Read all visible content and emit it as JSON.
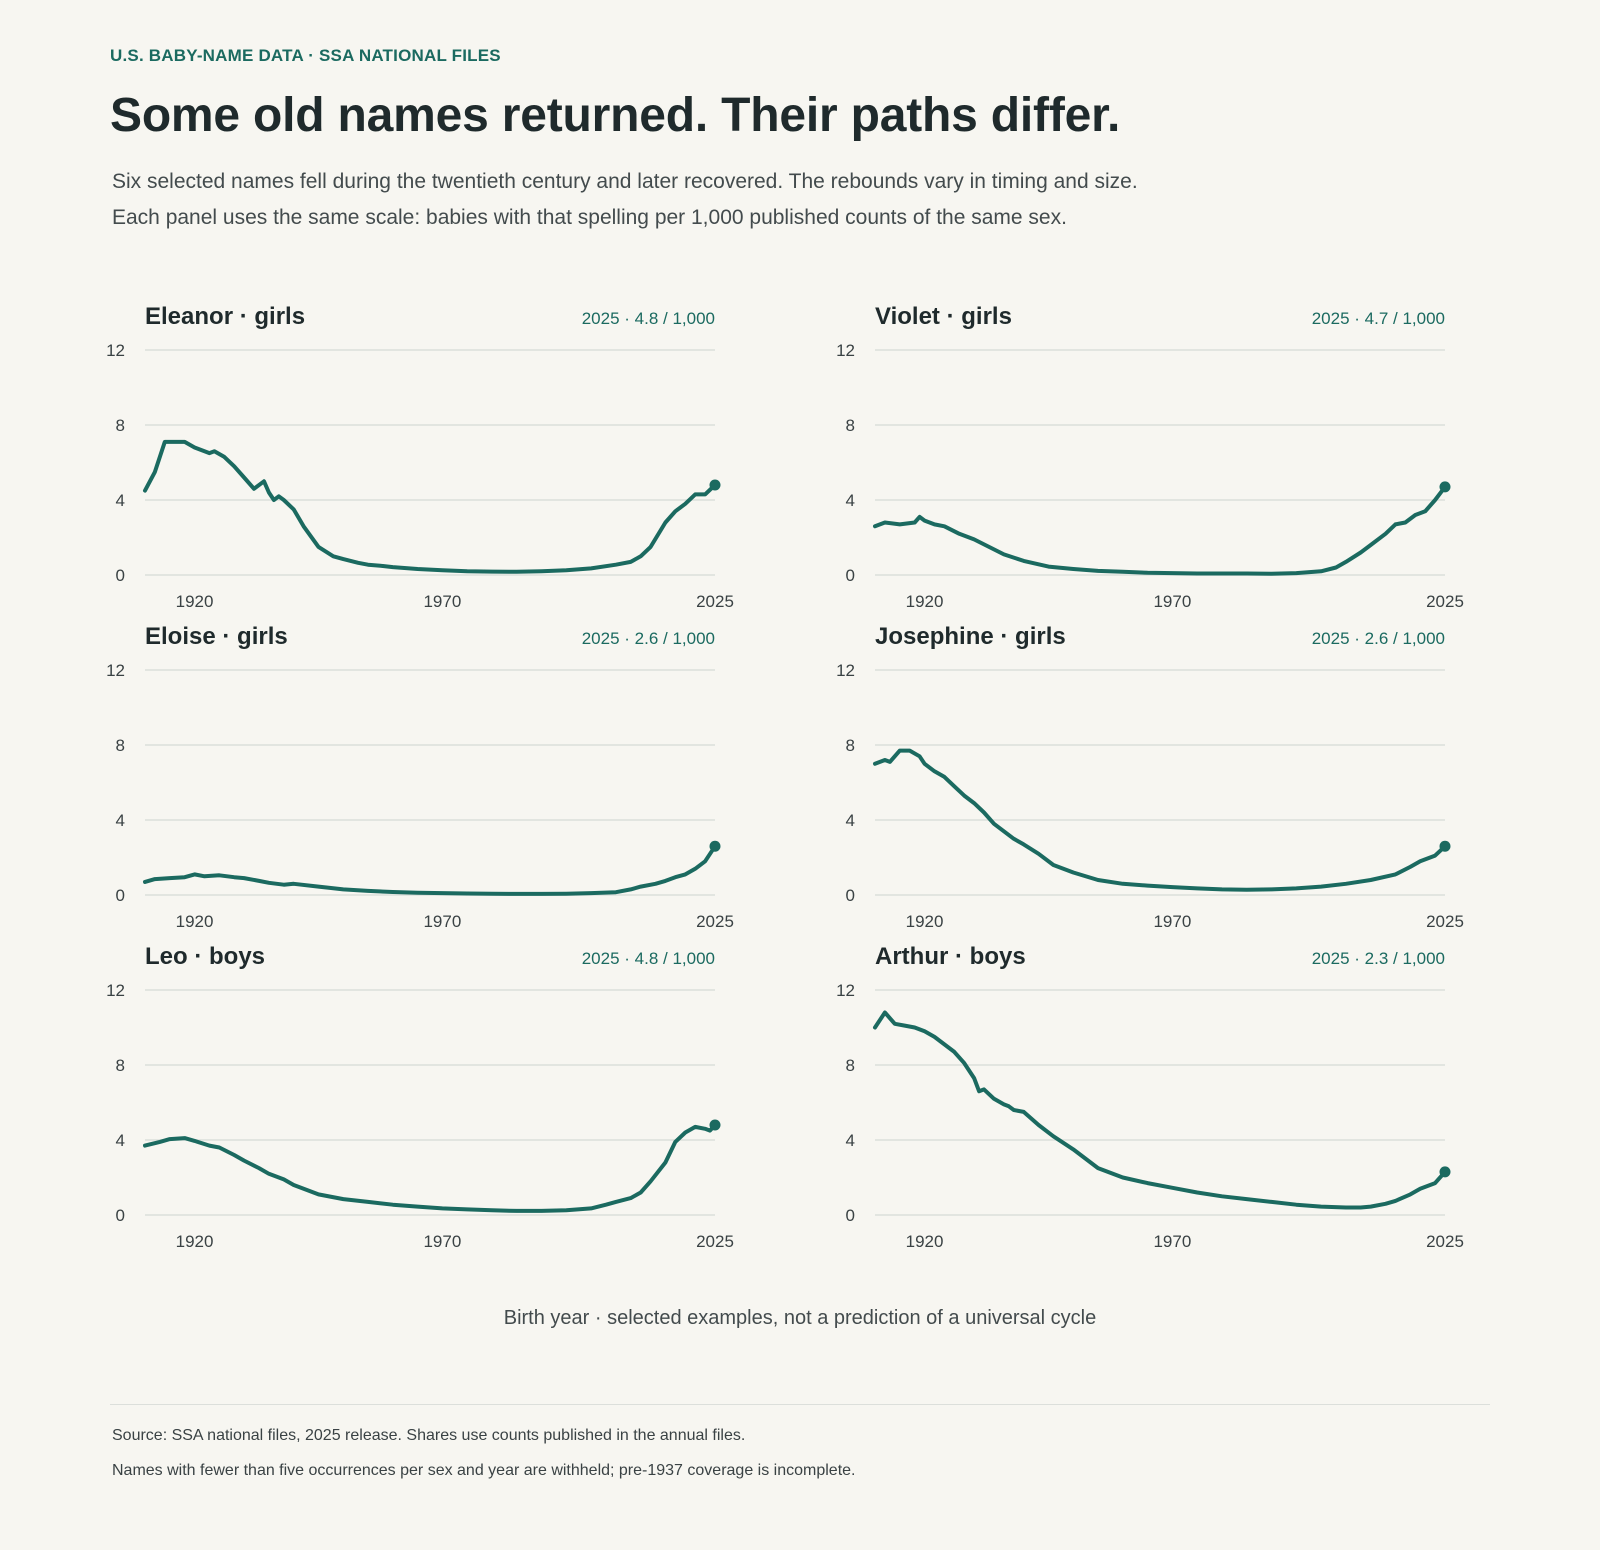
{
  "header": {
    "kicker": "U.S. BABY-NAME DATA · SSA NATIONAL FILES",
    "title": "Some old names returned. Their paths differ.",
    "subtitle_line1": "Six selected names fell during the twentieth century and later recovered. The rebounds vary in timing and size.",
    "subtitle_line2": "Each panel uses the same scale: babies with that spelling per 1,000 published counts of the same sex."
  },
  "x_axis_note": "Birth year · selected examples, not a prediction of a universal cycle",
  "footer": {
    "source_line1": "Source: SSA national files, 2025 release. Shares use counts published in the annual files.",
    "source_line2": "Names with fewer than five occurrences per sex and year are withheld; pre-1937 coverage is incomplete."
  },
  "colors": {
    "accent": "#1b6a60",
    "background": "#f7f6f1",
    "text": "#1f2a2c",
    "grid": "#dcdfdb"
  },
  "chart_data": [
    {
      "type": "line",
      "title": "Eleanor · girls",
      "latest_label": "2025 · 4.8 / 1,000",
      "xlim": [
        1910,
        2025
      ],
      "ylim": [
        0,
        12
      ],
      "x_ticks": [
        "1920",
        "1970",
        "2025"
      ],
      "y_ticks": [
        "0",
        "4",
        "8",
        "12"
      ],
      "grid": true,
      "x": [
        1910,
        1912,
        1914,
        1916,
        1918,
        1920,
        1922,
        1923,
        1924,
        1926,
        1928,
        1930,
        1932,
        1934,
        1935,
        1936,
        1937,
        1938,
        1940,
        1942,
        1945,
        1948,
        1950,
        1953,
        1955,
        1958,
        1960,
        1965,
        1970,
        1975,
        1980,
        1985,
        1990,
        1995,
        2000,
        2005,
        2008,
        2010,
        2012,
        2015,
        2017,
        2019,
        2021,
        2023,
        2025
      ],
      "values": [
        4.5,
        5.5,
        7.1,
        7.1,
        7.1,
        6.8,
        6.6,
        6.5,
        6.6,
        6.3,
        5.8,
        5.2,
        4.6,
        5.0,
        4.4,
        4.0,
        4.2,
        4.0,
        3.5,
        2.6,
        1.5,
        1.0,
        0.85,
        0.65,
        0.55,
        0.48,
        0.42,
        0.32,
        0.25,
        0.2,
        0.18,
        0.17,
        0.2,
        0.25,
        0.35,
        0.55,
        0.7,
        1.0,
        1.5,
        2.8,
        3.4,
        3.8,
        4.3,
        4.3,
        4.8
      ]
    },
    {
      "type": "line",
      "title": "Violet · girls",
      "latest_label": "2025 · 4.7 / 1,000",
      "xlim": [
        1910,
        2025
      ],
      "ylim": [
        0,
        12
      ],
      "x_ticks": [
        "1920",
        "1970",
        "2025"
      ],
      "y_ticks": [
        "0",
        "4",
        "8",
        "12"
      ],
      "grid": true,
      "x": [
        1910,
        1912,
        1915,
        1918,
        1919,
        1920,
        1922,
        1924,
        1927,
        1930,
        1933,
        1936,
        1940,
        1945,
        1950,
        1955,
        1960,
        1965,
        1970,
        1975,
        1980,
        1985,
        1990,
        1995,
        2000,
        2003,
        2005,
        2008,
        2010,
        2013,
        2015,
        2017,
        2019,
        2021,
        2023,
        2025
      ],
      "values": [
        2.6,
        2.8,
        2.7,
        2.8,
        3.1,
        2.9,
        2.7,
        2.6,
        2.2,
        1.9,
        1.5,
        1.1,
        0.75,
        0.45,
        0.32,
        0.22,
        0.17,
        0.12,
        0.1,
        0.08,
        0.08,
        0.08,
        0.07,
        0.1,
        0.2,
        0.4,
        0.7,
        1.2,
        1.6,
        2.2,
        2.7,
        2.8,
        3.2,
        3.4,
        4.0,
        4.7
      ]
    },
    {
      "type": "line",
      "title": "Eloise · girls",
      "latest_label": "2025 · 2.6 / 1,000",
      "xlim": [
        1910,
        2025
      ],
      "ylim": [
        0,
        12
      ],
      "x_ticks": [
        "1920",
        "1970",
        "2025"
      ],
      "y_ticks": [
        "0",
        "4",
        "8",
        "12"
      ],
      "grid": true,
      "x": [
        1910,
        1912,
        1915,
        1918,
        1920,
        1922,
        1925,
        1928,
        1930,
        1933,
        1935,
        1938,
        1940,
        1945,
        1950,
        1955,
        1960,
        1965,
        1970,
        1975,
        1980,
        1985,
        1990,
        1995,
        2000,
        2005,
        2008,
        2010,
        2013,
        2015,
        2017,
        2019,
        2021,
        2023,
        2025
      ],
      "values": [
        0.7,
        0.85,
        0.9,
        0.95,
        1.1,
        1.0,
        1.05,
        0.95,
        0.9,
        0.75,
        0.65,
        0.55,
        0.6,
        0.45,
        0.3,
        0.22,
        0.16,
        0.12,
        0.1,
        0.08,
        0.07,
        0.06,
        0.06,
        0.07,
        0.1,
        0.15,
        0.3,
        0.45,
        0.6,
        0.75,
        0.95,
        1.1,
        1.4,
        1.8,
        2.6
      ]
    },
    {
      "type": "line",
      "title": "Josephine · girls",
      "latest_label": "2025 · 2.6 / 1,000",
      "xlim": [
        1910,
        2025
      ],
      "ylim": [
        0,
        12
      ],
      "x_ticks": [
        "1920",
        "1970",
        "2025"
      ],
      "y_ticks": [
        "0",
        "4",
        "8",
        "12"
      ],
      "grid": true,
      "x": [
        1910,
        1912,
        1913,
        1915,
        1917,
        1919,
        1920,
        1922,
        1924,
        1926,
        1928,
        1930,
        1932,
        1934,
        1936,
        1938,
        1940,
        1943,
        1946,
        1950,
        1955,
        1960,
        1965,
        1970,
        1975,
        1980,
        1985,
        1990,
        1995,
        2000,
        2005,
        2010,
        2015,
        2018,
        2020,
        2023,
        2025
      ],
      "values": [
        7.0,
        7.2,
        7.1,
        7.7,
        7.7,
        7.4,
        7.0,
        6.6,
        6.3,
        5.8,
        5.3,
        4.9,
        4.4,
        3.8,
        3.4,
        3.0,
        2.7,
        2.2,
        1.6,
        1.2,
        0.8,
        0.6,
        0.5,
        0.42,
        0.35,
        0.3,
        0.28,
        0.3,
        0.35,
        0.45,
        0.6,
        0.8,
        1.1,
        1.5,
        1.8,
        2.1,
        2.6
      ]
    },
    {
      "type": "line",
      "title": "Leo · boys",
      "latest_label": "2025 · 4.8 / 1,000",
      "xlim": [
        1910,
        2025
      ],
      "ylim": [
        0,
        12
      ],
      "x_ticks": [
        "1920",
        "1970",
        "2025"
      ],
      "y_ticks": [
        "0",
        "4",
        "8",
        "12"
      ],
      "grid": true,
      "x": [
        1910,
        1913,
        1915,
        1918,
        1920,
        1923,
        1925,
        1928,
        1930,
        1933,
        1935,
        1938,
        1940,
        1945,
        1950,
        1955,
        1960,
        1965,
        1970,
        1975,
        1980,
        1985,
        1990,
        1995,
        2000,
        2003,
        2005,
        2008,
        2010,
        2012,
        2015,
        2017,
        2019,
        2021,
        2023,
        2024,
        2025
      ],
      "values": [
        3.7,
        3.9,
        4.05,
        4.1,
        3.95,
        3.7,
        3.6,
        3.2,
        2.9,
        2.5,
        2.2,
        1.9,
        1.6,
        1.1,
        0.85,
        0.7,
        0.55,
        0.45,
        0.35,
        0.3,
        0.25,
        0.22,
        0.22,
        0.25,
        0.35,
        0.55,
        0.7,
        0.9,
        1.2,
        1.8,
        2.8,
        3.9,
        4.4,
        4.7,
        4.6,
        4.5,
        4.8
      ]
    },
    {
      "type": "line",
      "title": "Arthur · boys",
      "latest_label": "2025 · 2.3 / 1,000",
      "xlim": [
        1910,
        2025
      ],
      "ylim": [
        0,
        12
      ],
      "x_ticks": [
        "1920",
        "1970",
        "2025"
      ],
      "y_ticks": [
        "0",
        "4",
        "8",
        "12"
      ],
      "grid": true,
      "x": [
        1910,
        1912,
        1914,
        1916,
        1918,
        1920,
        1922,
        1924,
        1926,
        1928,
        1930,
        1931,
        1932,
        1934,
        1936,
        1937,
        1938,
        1940,
        1943,
        1946,
        1950,
        1955,
        1960,
        1965,
        1970,
        1975,
        1980,
        1985,
        1990,
        1995,
        2000,
        2005,
        2008,
        2010,
        2013,
        2015,
        2018,
        2020,
        2023,
        2025
      ],
      "values": [
        10.0,
        10.8,
        10.2,
        10.1,
        10.0,
        9.8,
        9.5,
        9.1,
        8.7,
        8.1,
        7.3,
        6.6,
        6.7,
        6.2,
        5.9,
        5.8,
        5.6,
        5.5,
        4.8,
        4.2,
        3.5,
        2.5,
        2.0,
        1.7,
        1.45,
        1.2,
        1.0,
        0.85,
        0.7,
        0.55,
        0.45,
        0.4,
        0.4,
        0.45,
        0.6,
        0.75,
        1.1,
        1.4,
        1.7,
        2.3
      ]
    }
  ]
}
